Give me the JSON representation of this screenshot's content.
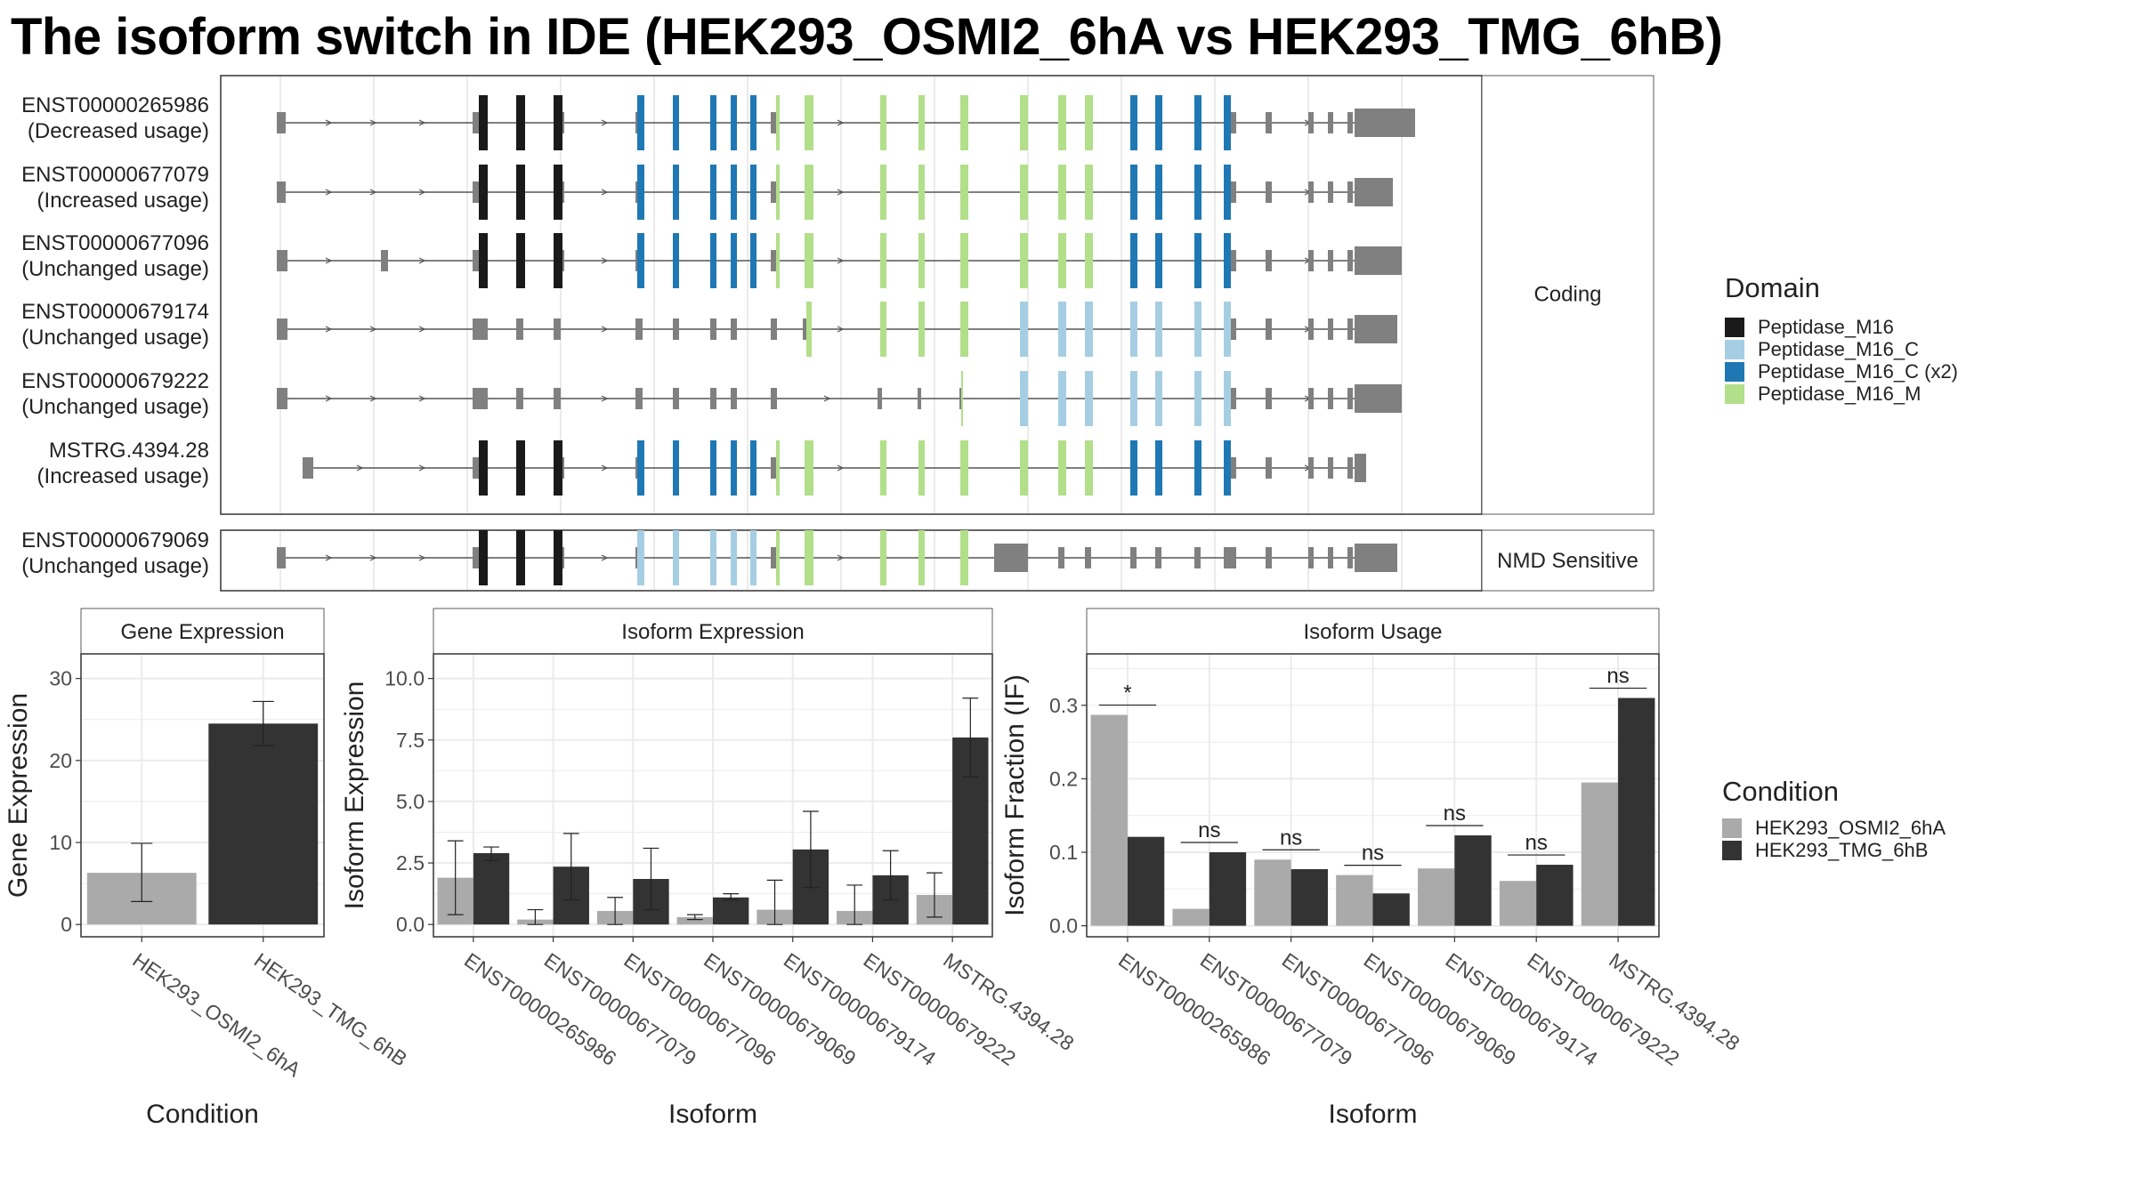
{
  "title": "The isoform switch in IDE (HEK293_OSMI2_6hA vs HEK293_TMG_6hB)",
  "colors": {
    "panel_border": "#333333",
    "strip_fill": "#ffffff",
    "grid": "#ebebeb",
    "intron": "#555555",
    "utr": "#808080",
    "cond_a": "#aaaaaa",
    "cond_b": "#333333",
    "Peptidase_M16": "#1a1a1a",
    "Peptidase_M16_C": "#a6cee3",
    "Peptidase_M16_C (x2)": "#1f78b4",
    "Peptidase_M16_M": "#b2df8a"
  },
  "structure_panel": {
    "coding_label": "Coding",
    "nmd_label": "NMD Sensitive",
    "transcripts": [
      {
        "id": "ENST00000265986",
        "status": "(Decreased usage)",
        "group": "coding"
      },
      {
        "id": "ENST00000677079",
        "status": "(Increased usage)",
        "group": "coding"
      },
      {
        "id": "ENST00000677096",
        "status": "(Unchanged usage)",
        "group": "coding"
      },
      {
        "id": "ENST00000679174",
        "status": "(Unchanged usage)",
        "group": "coding"
      },
      {
        "id": "ENST00000679222",
        "status": "(Unchanged usage)",
        "group": "coding"
      },
      {
        "id": "MSTRG.4394.28",
        "status": "(Increased usage)",
        "group": "coding"
      },
      {
        "id": "ENST00000679069",
        "status": "(Unchanged usage)",
        "group": "nmd"
      }
    ]
  },
  "domain_legend": {
    "title": "Domain",
    "items": [
      "Peptidase_M16",
      "Peptidase_M16_C",
      "Peptidase_M16_C (x2)",
      "Peptidase_M16_M"
    ]
  },
  "condition_legend": {
    "title": "Condition",
    "items": [
      "HEK293_OSMI2_6hA",
      "HEK293_TMG_6hB"
    ]
  },
  "chart_data": [
    {
      "type": "bar",
      "title": "Gene Expression",
      "xlabel": "Condition",
      "ylabel": "Gene Expression",
      "ylim": [
        -1.5,
        33
      ],
      "yticks": [
        0,
        10,
        20,
        30
      ],
      "categories": [
        "HEK293_OSMI2_6hA",
        "HEK293_TMG_6hB"
      ],
      "values": [
        6.3,
        24.5
      ],
      "err_low": [
        2.8,
        21.8
      ],
      "err_high": [
        9.9,
        27.2
      ]
    },
    {
      "type": "bar",
      "title": "Isoform Expression",
      "xlabel": "Isoform",
      "ylabel": "Isoform Expression",
      "ylim": [
        -0.5,
        11
      ],
      "yticks": [
        0.0,
        2.5,
        5.0,
        7.5,
        10.0
      ],
      "categories": [
        "ENST00000265986",
        "ENST00000677079",
        "ENST00000677096",
        "ENST00000679069",
        "ENST00000679174",
        "ENST00000679222",
        "MSTRG.4394.28"
      ],
      "series": [
        {
          "name": "HEK293_OSMI2_6hA",
          "values": [
            1.9,
            0.2,
            0.55,
            0.3,
            0.6,
            0.55,
            1.2
          ],
          "err_low": [
            0.4,
            0.0,
            0.0,
            0.2,
            0.0,
            0.0,
            0.3
          ],
          "err_high": [
            3.4,
            0.6,
            1.1,
            0.4,
            1.8,
            1.6,
            2.1
          ]
        },
        {
          "name": "HEK293_TMG_6hB",
          "values": [
            2.9,
            2.35,
            1.85,
            1.1,
            3.05,
            2.0,
            7.6
          ],
          "err_low": [
            2.6,
            1.0,
            0.6,
            1.0,
            1.5,
            1.0,
            6.0
          ],
          "err_high": [
            3.15,
            3.7,
            3.1,
            1.25,
            4.6,
            3.0,
            9.2
          ]
        }
      ]
    },
    {
      "type": "bar",
      "title": "Isoform Usage",
      "xlabel": "Isoform",
      "ylabel": "Isoform Fraction (IF)",
      "ylim": [
        -0.015,
        0.37
      ],
      "yticks": [
        0.0,
        0.1,
        0.2,
        0.3
      ],
      "categories": [
        "ENST00000265986",
        "ENST00000677079",
        "ENST00000677096",
        "ENST00000679069",
        "ENST00000679174",
        "ENST00000679222",
        "MSTRG.4394.28"
      ],
      "series": [
        {
          "name": "HEK293_OSMI2_6hA",
          "values": [
            0.287,
            0.023,
            0.09,
            0.069,
            0.078,
            0.061,
            0.195
          ]
        },
        {
          "name": "HEK293_TMG_6hB",
          "values": [
            0.121,
            0.1,
            0.077,
            0.044,
            0.123,
            0.083,
            0.31
          ]
        }
      ],
      "significance": [
        "*",
        "ns",
        "ns",
        "ns",
        "ns",
        "ns",
        "ns"
      ]
    }
  ]
}
